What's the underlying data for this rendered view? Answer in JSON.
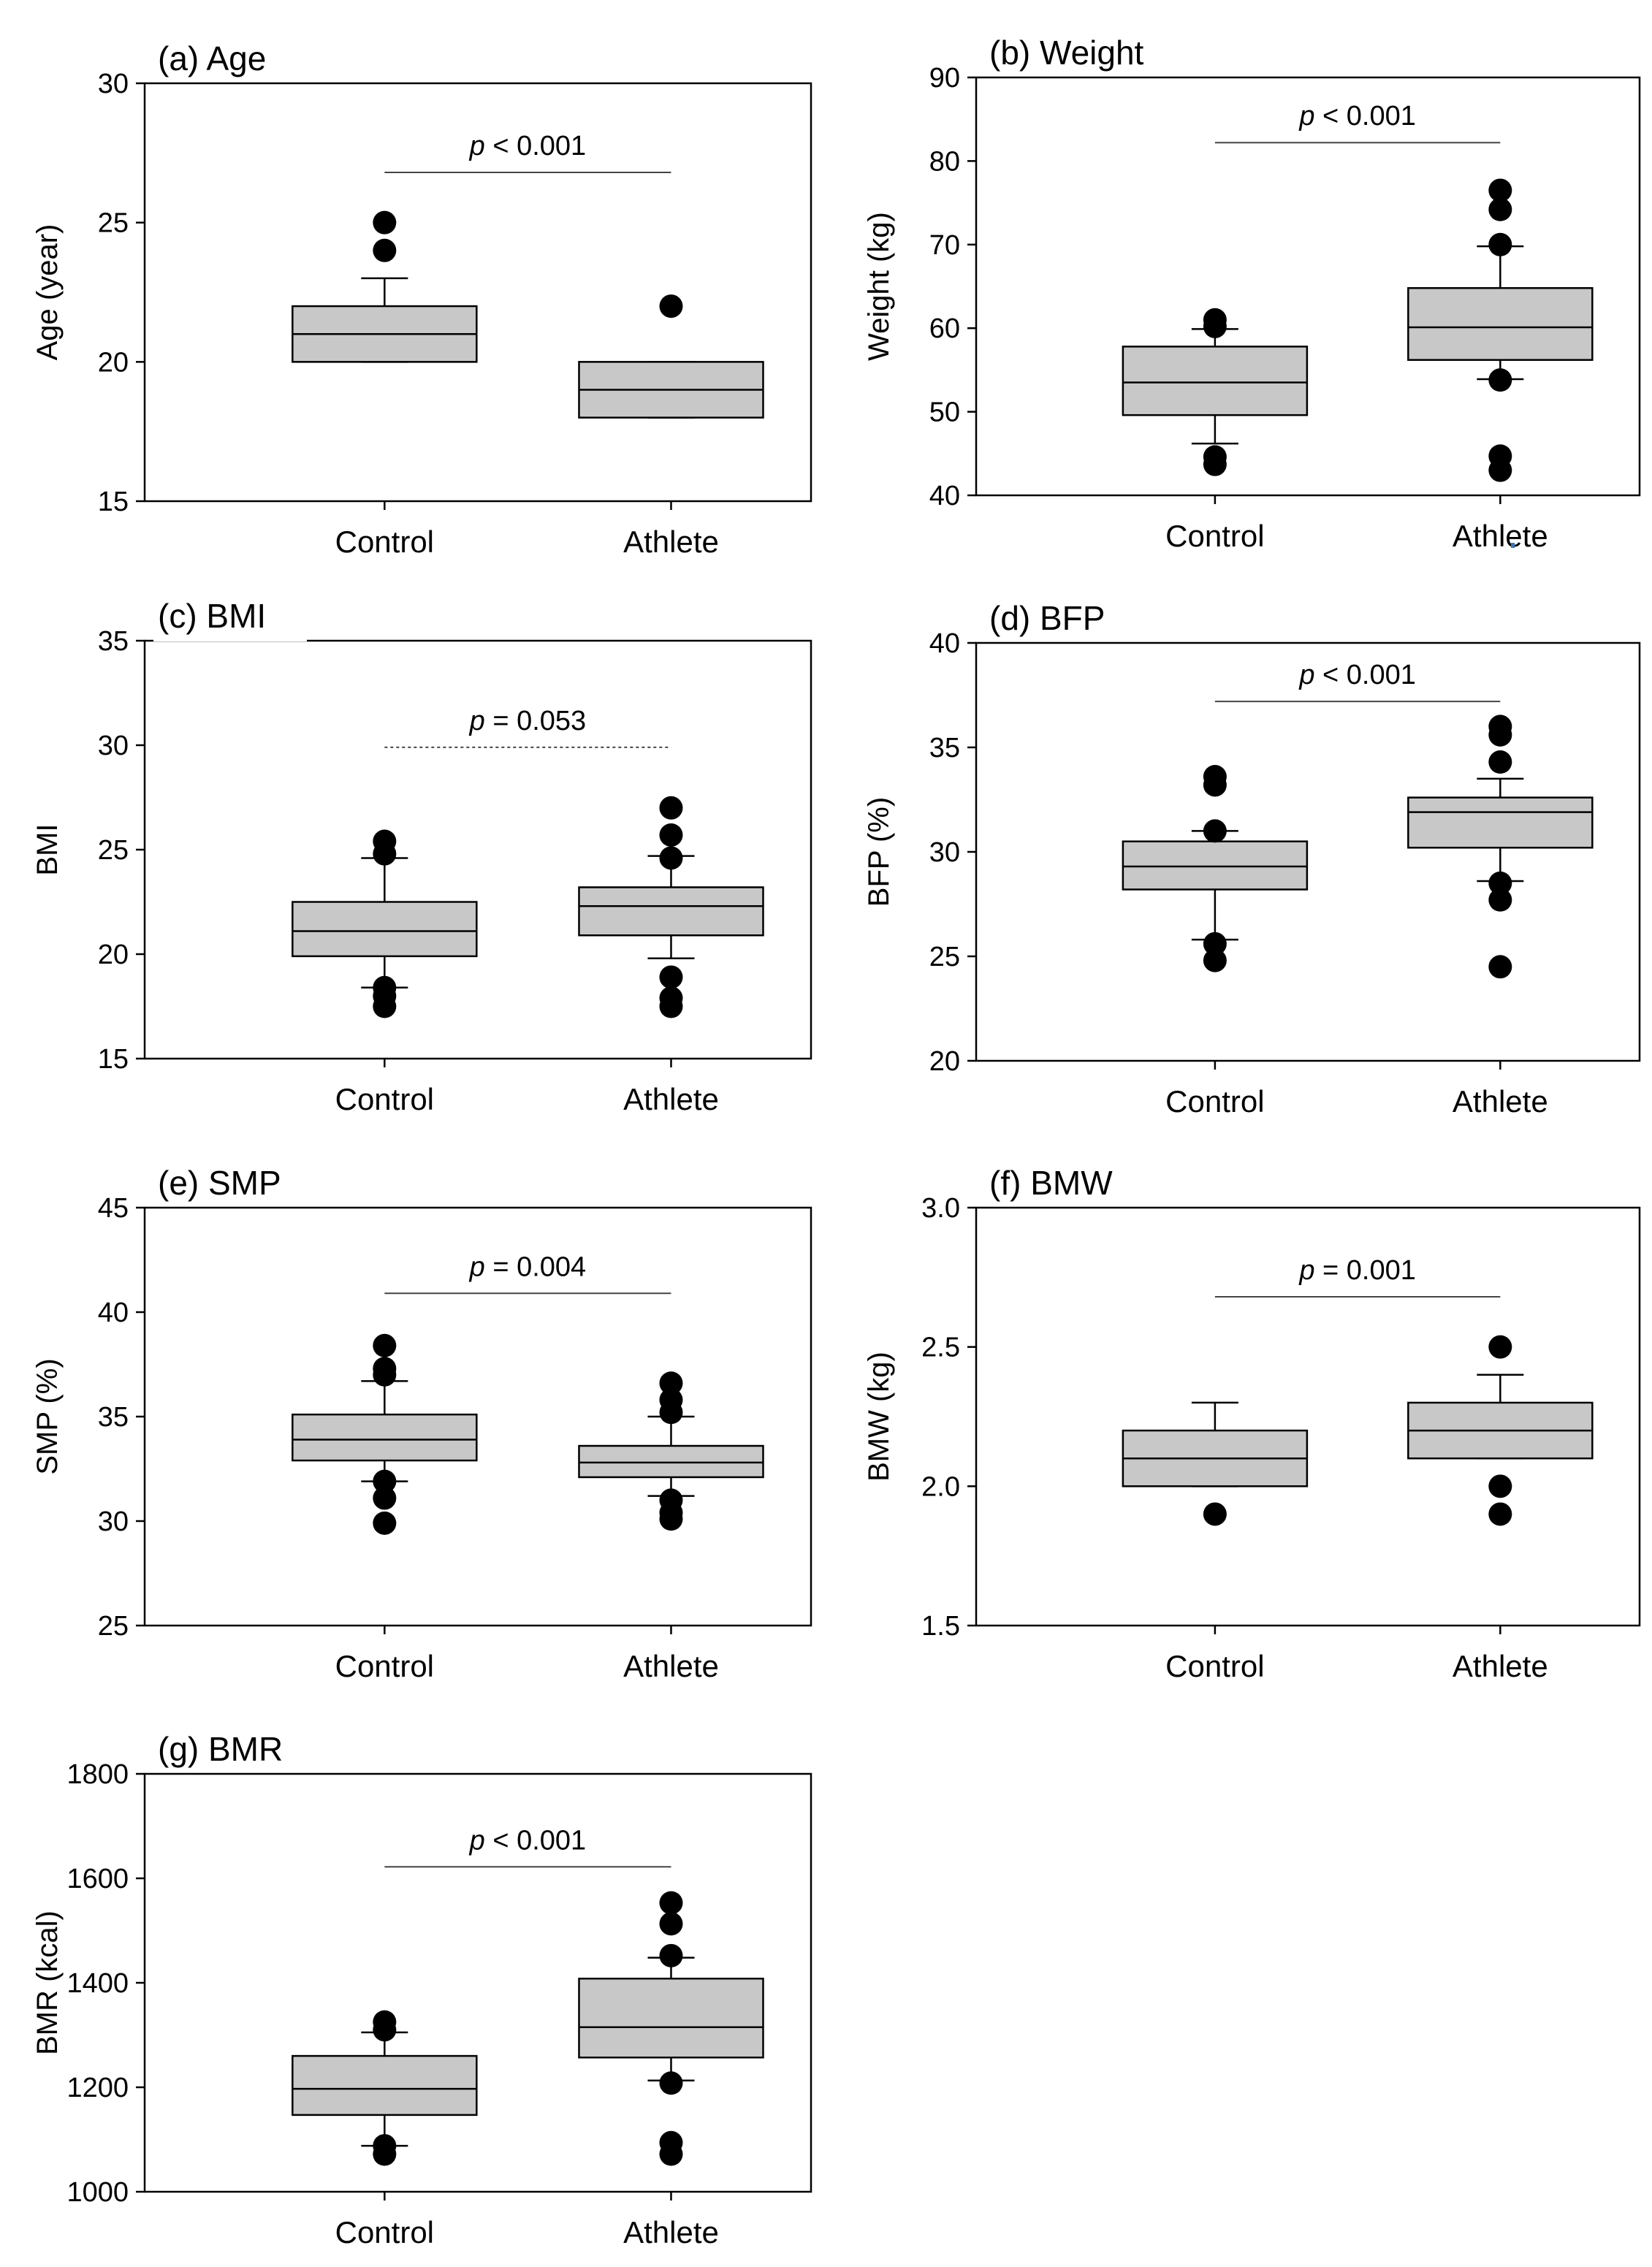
{
  "chart_data": [
    {
      "type": "box",
      "panel_title": "(a) Age",
      "ylabel": "Age (year)",
      "ylim": [
        15,
        30
      ],
      "yticks": [
        15,
        20,
        25,
        30
      ],
      "ytick_labels": [
        "15",
        "20",
        "25",
        "30"
      ],
      "categories": [
        "Control",
        "Athlete"
      ],
      "boxes": [
        {
          "q1": 20,
          "median": 21,
          "q3": 22,
          "whisker_low": 20,
          "whisker_high": 23,
          "outliers": [
            24,
            25
          ]
        },
        {
          "q1": 18,
          "median": 19,
          "q3": 20,
          "whisker_low": 18,
          "whisker_high": 20,
          "outliers": [
            22
          ]
        }
      ],
      "significance": {
        "italic": "p",
        "text": " < 0.001",
        "y": 26.8,
        "style": "solid"
      }
    },
    {
      "type": "box",
      "panel_title": "(b) Weight",
      "ylabel": "Weight (kg)",
      "ylim": [
        40,
        90
      ],
      "yticks": [
        40,
        50,
        60,
        70,
        80,
        90
      ],
      "ytick_labels": [
        "40",
        "50",
        "60",
        "70",
        "80",
        "90"
      ],
      "categories": [
        "Control",
        "Athlete"
      ],
      "boxes": [
        {
          "q1": 49.6,
          "median": 53.5,
          "q3": 57.8,
          "whisker_low": 46.2,
          "whisker_high": 59.9,
          "outliers": [
            43.7,
            44.6,
            60.2,
            61.0
          ]
        },
        {
          "q1": 56.2,
          "median": 60.1,
          "q3": 64.8,
          "whisker_low": 53.9,
          "whisker_high": 69.8,
          "outliers": [
            43.0,
            44.7,
            53.8,
            70.0,
            74.2,
            76.5
          ]
        }
      ],
      "significance": {
        "italic": "p",
        "text": " < 0.001",
        "y": 82.2,
        "style": "solid"
      }
    },
    {
      "type": "box",
      "panel_title": "(c) BMI",
      "ylabel": "BMI",
      "ylim": [
        15,
        35
      ],
      "yticks": [
        15,
        20,
        25,
        30,
        35
      ],
      "ytick_labels": [
        "15",
        "20",
        "25",
        "30",
        "35"
      ],
      "categories": [
        "Control",
        "Athlete"
      ],
      "boxes": [
        {
          "q1": 19.9,
          "median": 21.1,
          "q3": 22.5,
          "whisker_low": 18.4,
          "whisker_high": 24.6,
          "outliers": [
            17.5,
            18.0,
            18.4,
            24.8,
            25.4
          ]
        },
        {
          "q1": 20.9,
          "median": 22.3,
          "q3": 23.2,
          "whisker_low": 19.8,
          "whisker_high": 24.7,
          "outliers": [
            17.5,
            17.9,
            18.9,
            24.6,
            25.7,
            27.0
          ]
        }
      ],
      "significance": {
        "italic": "p",
        "text": " = 0.053",
        "y": 29.9,
        "style": "dotted"
      }
    },
    {
      "type": "box",
      "panel_title": "(d) BFP",
      "ylabel": "BFP (%)",
      "ylim": [
        20,
        40
      ],
      "yticks": [
        20,
        25,
        30,
        35,
        40
      ],
      "ytick_labels": [
        "20",
        "25",
        "30",
        "35",
        "40"
      ],
      "categories": [
        "Control",
        "Athlete"
      ],
      "boxes": [
        {
          "q1": 28.2,
          "median": 29.3,
          "q3": 30.5,
          "whisker_low": 25.8,
          "whisker_high": 31.0,
          "outliers": [
            24.8,
            25.6,
            31.0,
            33.2,
            33.6
          ]
        },
        {
          "q1": 30.2,
          "median": 31.9,
          "q3": 32.6,
          "whisker_low": 28.6,
          "whisker_high": 33.5,
          "outliers": [
            24.5,
            27.7,
            28.5,
            34.3,
            35.6,
            36.0
          ]
        }
      ],
      "significance": {
        "italic": "p",
        "text": " < 0.001",
        "y": 37.2,
        "style": "solid"
      }
    },
    {
      "type": "box",
      "panel_title": "(e) SMP",
      "ylabel": "SMP (%)",
      "ylim": [
        25,
        45
      ],
      "yticks": [
        25,
        30,
        35,
        40,
        45
      ],
      "ytick_labels": [
        "25",
        "30",
        "35",
        "40",
        "45"
      ],
      "categories": [
        "Control",
        "Athlete"
      ],
      "boxes": [
        {
          "q1": 32.9,
          "median": 33.9,
          "q3": 35.1,
          "whisker_low": 31.9,
          "whisker_high": 36.7,
          "outliers": [
            29.9,
            31.1,
            31.9,
            37.0,
            37.3,
            38.4
          ]
        },
        {
          "q1": 32.1,
          "median": 32.8,
          "q3": 33.6,
          "whisker_low": 31.2,
          "whisker_high": 35.0,
          "outliers": [
            30.1,
            30.4,
            31.0,
            35.2,
            35.8,
            36.6
          ]
        }
      ],
      "significance": {
        "italic": "p",
        "text": " = 0.004",
        "y": 40.9,
        "style": "solid"
      }
    },
    {
      "type": "box",
      "panel_title": "(f) BMW",
      "ylabel": "BMW (kg)",
      "ylim": [
        1.5,
        3.0
      ],
      "yticks": [
        1.5,
        2.0,
        2.5,
        3.0
      ],
      "ytick_labels": [
        "1.5",
        "2.0",
        "2.5",
        "3.0"
      ],
      "categories": [
        "Control",
        "Athlete"
      ],
      "boxes": [
        {
          "q1": 2.0,
          "median": 2.1,
          "q3": 2.2,
          "whisker_low": 2.0,
          "whisker_high": 2.3,
          "outliers": [
            1.9
          ]
        },
        {
          "q1": 2.1,
          "median": 2.2,
          "q3": 2.3,
          "whisker_low": 2.1,
          "whisker_high": 2.4,
          "outliers": [
            1.9,
            2.0,
            2.5
          ]
        }
      ],
      "significance": {
        "italic": "p",
        "text": " = 0.001",
        "y": 2.68,
        "style": "solid"
      }
    },
    {
      "type": "box",
      "panel_title": "(g) BMR",
      "ylabel": "BMR (kcal)",
      "ylim": [
        1000,
        1800
      ],
      "yticks": [
        1000,
        1200,
        1400,
        1600,
        1800
      ],
      "ytick_labels": [
        "1000",
        "1200",
        "1400",
        "1600",
        "1800"
      ],
      "categories": [
        "Control",
        "Athlete"
      ],
      "boxes": [
        {
          "q1": 1147,
          "median": 1197,
          "q3": 1260,
          "whisker_low": 1088,
          "whisker_high": 1305,
          "outliers": [
            1072,
            1088,
            1310,
            1325
          ]
        },
        {
          "q1": 1257,
          "median": 1315,
          "q3": 1408,
          "whisker_low": 1213,
          "whisker_high": 1448,
          "outliers": [
            1072,
            1094,
            1208,
            1452,
            1513,
            1553
          ]
        }
      ],
      "significance": {
        "italic": "p",
        "text": " < 0.001",
        "y": 1622,
        "style": "solid"
      }
    }
  ]
}
